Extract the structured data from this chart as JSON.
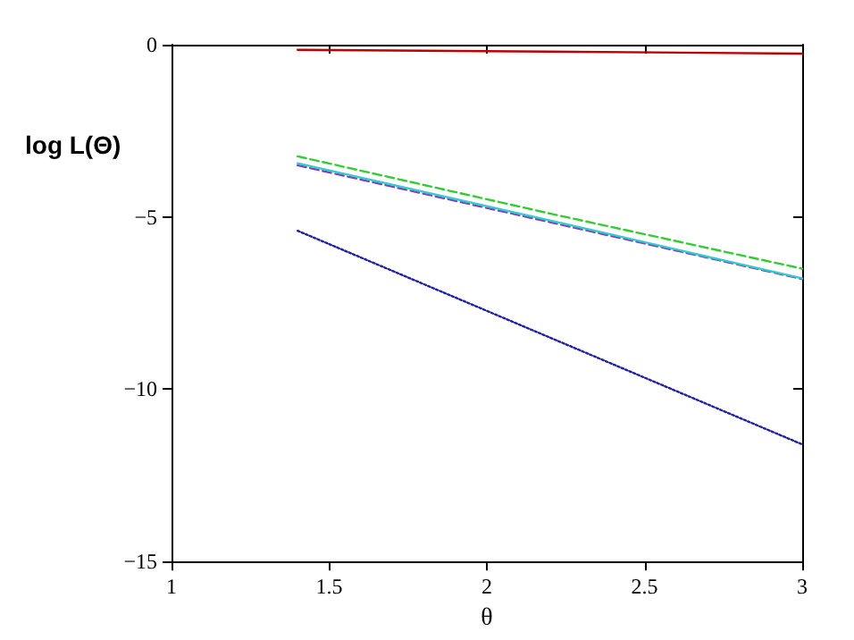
{
  "chart_data": {
    "type": "line",
    "xlabel": "θ",
    "ylabel": "log L(Θ)",
    "x": [
      1.4,
      2.2,
      3
    ],
    "series": [
      {
        "color": "#c00000",
        "values": [
          -0.15,
          -0.2,
          -0.26
        ],
        "line_style": "solid"
      },
      {
        "color": "#33cc33",
        "values": [
          -3.24,
          -4.9,
          -6.5
        ],
        "line_style": "dashed"
      },
      {
        "color": "#8040c0",
        "values": [
          -3.5,
          -5.15,
          -6.8
        ],
        "line_style": "dashed"
      },
      {
        "color": "#33cccc",
        "values": [
          -3.44,
          -5.1,
          -6.78
        ],
        "line_style": "solid"
      },
      {
        "color": "#2020a0",
        "values": [
          -5.4,
          -8.5,
          -11.6
        ],
        "line_style": "dotted"
      }
    ],
    "xlim": [
      1,
      3
    ],
    "xticks": [
      1,
      1.5,
      2,
      2.5,
      3
    ],
    "ylim": [
      -15,
      0
    ],
    "yticks": [
      -15,
      -10,
      -5,
      0
    ],
    "grid": false,
    "marker": "none"
  }
}
